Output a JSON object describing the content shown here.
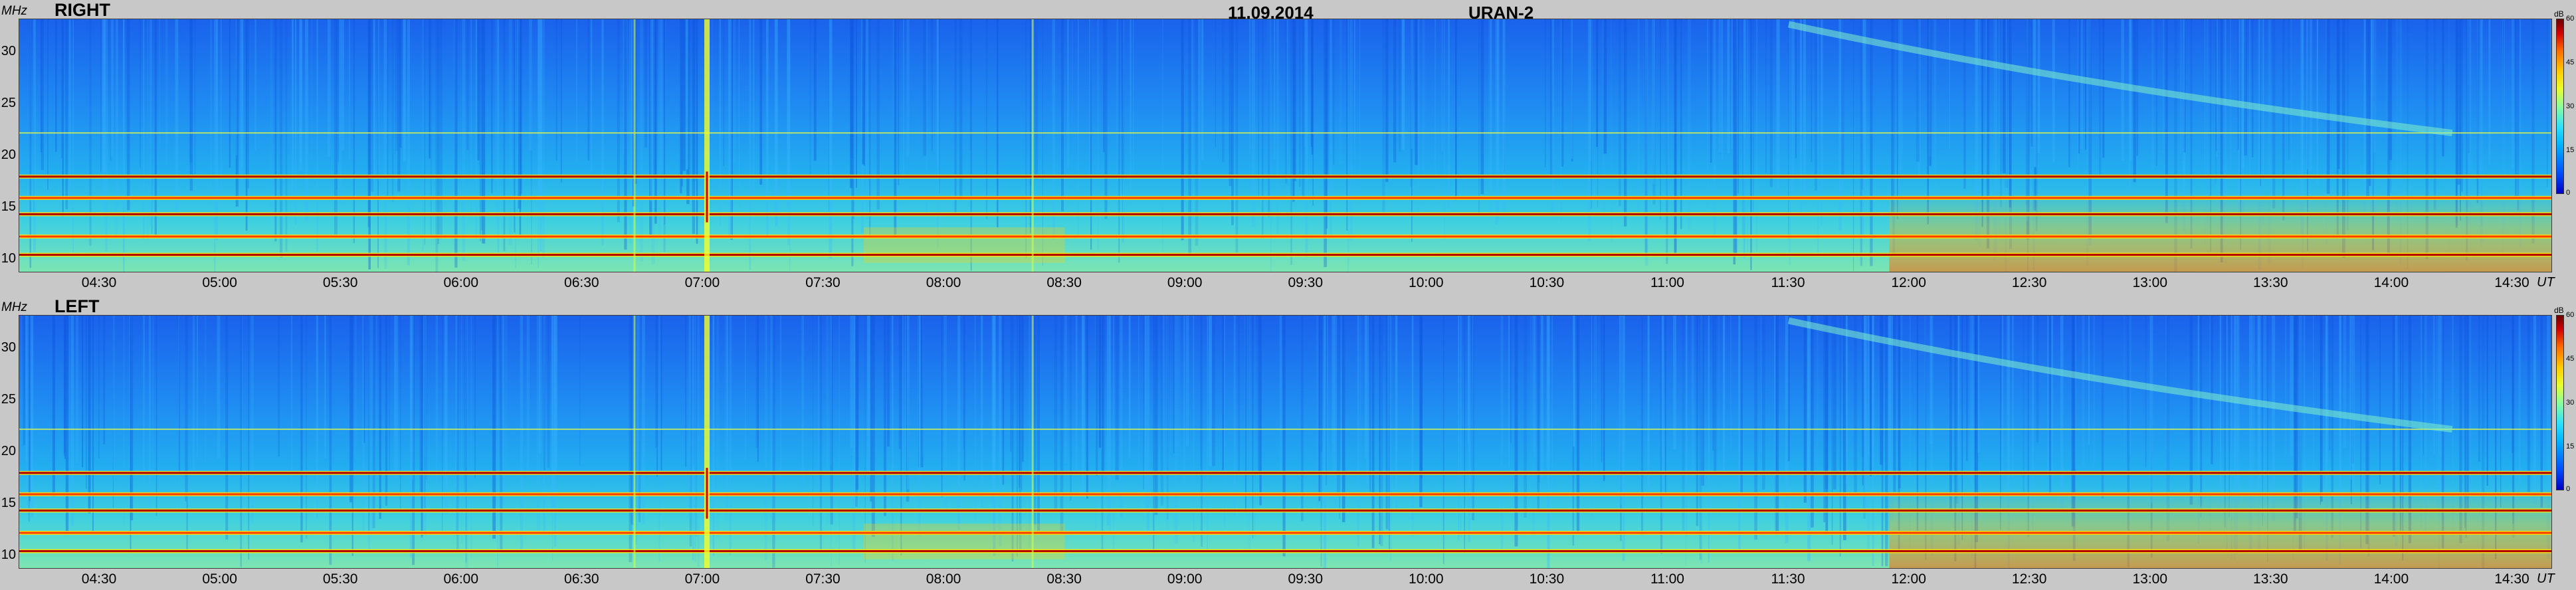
{
  "header": {
    "date": "11.09.2014",
    "instrument": "URAN-2"
  },
  "panels": [
    {
      "label": "RIGHT"
    },
    {
      "label": "LEFT"
    }
  ],
  "axes": {
    "y_unit": "MHz",
    "x_unit": "UT",
    "y_ticks": [
      "30",
      "25",
      "20",
      "15",
      "10"
    ],
    "x_ticks": [
      "04:30",
      "05:00",
      "05:30",
      "06:00",
      "06:30",
      "07:00",
      "07:30",
      "08:00",
      "08:30",
      "09:00",
      "09:30",
      "10:00",
      "10:30",
      "11:00",
      "11:30",
      "12:00",
      "12:30",
      "13:00",
      "13:30",
      "14:00",
      "14:30"
    ]
  },
  "colorbar": {
    "unit": "dB",
    "ticks": [
      "60",
      "45",
      "30",
      "15",
      "0"
    ],
    "range": [
      0,
      60
    ]
  },
  "chart_data": [
    {
      "type": "heatmap",
      "title": "RIGHT",
      "xlabel": "UT",
      "ylabel": "MHz",
      "ylim": [
        8,
        33
      ],
      "x_range": [
        "04:10",
        "14:40"
      ],
      "z_range": [
        0,
        60
      ],
      "interference_bands_mhz": [
        17.5,
        15.4,
        13.8,
        11.6,
        9.8
      ],
      "bursts_ut": [
        "06:43",
        "07:01",
        "08:22"
      ],
      "drifting_feature": {
        "start_ut": "11:30",
        "end_ut": "14:15",
        "start_mhz": 32.5,
        "end_mhz": 21.8
      }
    },
    {
      "type": "heatmap",
      "title": "LEFT",
      "xlabel": "UT",
      "ylabel": "MHz",
      "ylim": [
        8,
        33
      ],
      "x_range": [
        "04:10",
        "14:40"
      ],
      "z_range": [
        0,
        60
      ],
      "interference_bands_mhz": [
        17.5,
        15.4,
        13.8,
        11.6,
        9.8
      ],
      "bursts_ut": [
        "06:43",
        "07:01",
        "08:22"
      ],
      "drifting_feature": {
        "start_ut": "11:30",
        "end_ut": "14:15",
        "start_mhz": 32.5,
        "end_mhz": 21.8
      }
    }
  ]
}
